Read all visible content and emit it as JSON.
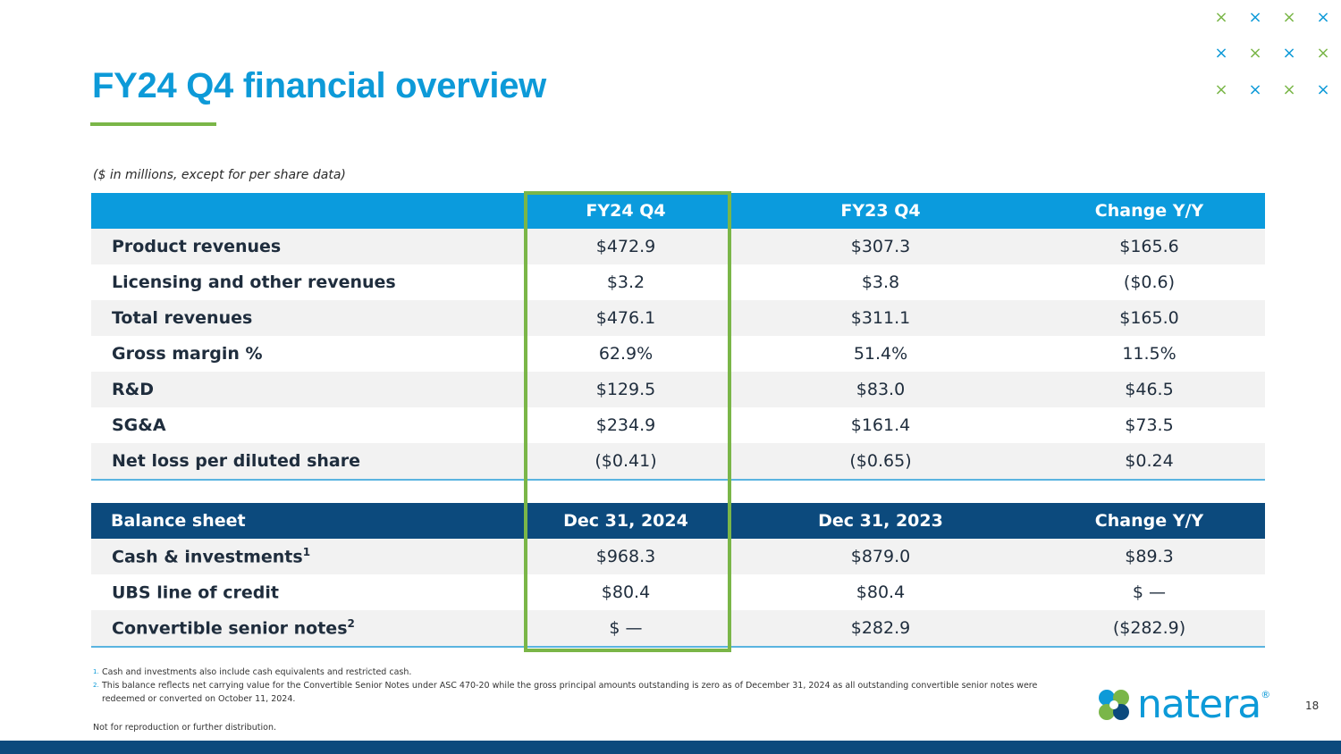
{
  "slide": {
    "title": "FY24 Q4 financial overview",
    "subtitle": "($ in millions, except for per share data)",
    "page_number": "18",
    "colors": {
      "accent_blue": "#0d9ad8",
      "accent_green": "#7ab648",
      "navy": "#0c4a7d"
    }
  },
  "income_table": {
    "headers": [
      "",
      "FY24 Q4",
      "FY23 Q4",
      "Change Y/Y"
    ],
    "rows": [
      {
        "label": "Product revenues",
        "cur": "$472.9",
        "prev": "$307.3",
        "chg": "$165.6"
      },
      {
        "label": "Licensing and other revenues",
        "cur": "$3.2",
        "prev": "$3.8",
        "chg": "($0.6)"
      },
      {
        "label": "Total revenues",
        "cur": "$476.1",
        "prev": "$311.1",
        "chg": "$165.0"
      },
      {
        "label": "Gross margin %",
        "cur": "62.9%",
        "prev": "51.4%",
        "chg": "11.5%"
      },
      {
        "label": "R&D",
        "cur": "$129.5",
        "prev": "$83.0",
        "chg": "$46.5"
      },
      {
        "label": "SG&A",
        "cur": "$234.9",
        "prev": "$161.4",
        "chg": "$73.5"
      },
      {
        "label": "Net loss per diluted share",
        "cur": "($0.41)",
        "prev": "($0.65)",
        "chg": "$0.24"
      }
    ]
  },
  "balance_table": {
    "headers": [
      "Balance sheet",
      "Dec 31, 2024",
      "Dec 31, 2023",
      "Change Y/Y"
    ],
    "rows": [
      {
        "label": "Cash & investments",
        "sup": "1",
        "cur": "$968.3",
        "prev": "$879.0",
        "chg": "$89.3"
      },
      {
        "label": "UBS line of credit",
        "sup": "",
        "cur": "$80.4",
        "prev": "$80.4",
        "chg": "$ —"
      },
      {
        "label": "Convertible senior notes",
        "sup": "2",
        "cur": "$ —",
        "prev": "$282.9",
        "chg": "($282.9)"
      }
    ]
  },
  "footnotes": [
    {
      "num": "1.",
      "text": "Cash and investments also include cash equivalents and restricted cash."
    },
    {
      "num": "2.",
      "text": "This balance reflects net carrying value for the Convertible Senior Notes under ASC 470-20 while the gross principal amounts outstanding is zero as of December 31, 2024 as all outstanding convertible senior notes were redeemed or converted on October 11, 2024."
    }
  ],
  "disclaimer": "Not for reproduction or further distribution.",
  "logo": {
    "text": "natera",
    "reg": "®",
    "icon": "natera-flower-icon"
  },
  "decor": {
    "x_glyph": "×"
  }
}
